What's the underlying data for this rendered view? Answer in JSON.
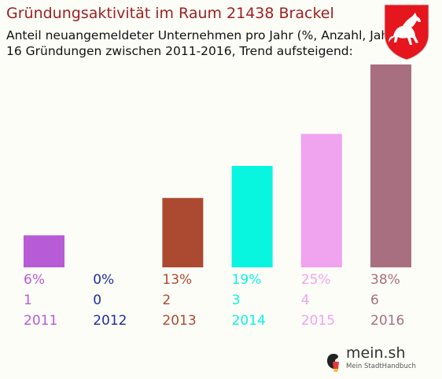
{
  "title": "Gründungsaktivität im Raum 21438 Brackel",
  "subtitle_line1": "Anteil neuangemeldeter Unternehmen pro Jahr (%, Anzahl, Jahr)",
  "subtitle_line2": "16 Gründungen zwischen 2011-2016, Trend aufsteigend:",
  "chart_data": {
    "type": "bar",
    "categories": [
      "2011",
      "2012",
      "2013",
      "2014",
      "2015",
      "2016"
    ],
    "percent_labels": [
      "6%",
      "0%",
      "13%",
      "19%",
      "25%",
      "38%"
    ],
    "values": [
      6,
      0,
      13,
      19,
      25,
      38
    ],
    "counts": [
      "1",
      "0",
      "2",
      "3",
      "4",
      "6"
    ],
    "colors": [
      "#b85bd6",
      "#1f2e9a",
      "#ab4a30",
      "#08f5e0",
      "#f0a3ef",
      "#a76f80"
    ],
    "ylim": [
      0,
      38
    ]
  },
  "logo": {
    "name": "mein.sh",
    "tagline": "Mein StadtHandbuch"
  },
  "crest_icon": "lower-saxony-horse-crest-icon"
}
